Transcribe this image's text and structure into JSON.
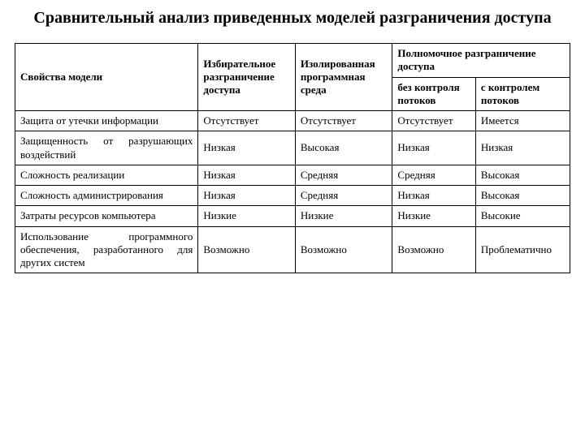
{
  "title": "Сравнительный анализ приведенных моделей разграничения доступа",
  "header": {
    "row_label": "Свойства модели",
    "col1": "Избирательное разграничение доступа",
    "col2": "Изолированная программная среда",
    "group": "Полномочное разграничение доступа",
    "sub1": "без контроля потоков",
    "sub2": "с контролем потоков"
  },
  "rows": [
    {
      "label": "Защита от утечки информации",
      "c1": "Отсутствует",
      "c2": "Отсутствует",
      "c3": "Отсутствует",
      "c4": "Имеется"
    },
    {
      "label": "Защищенность от разрушающих воздействий",
      "c1": "Низкая",
      "c2": "Высокая",
      "c3": "Низкая",
      "c4": "Низкая"
    },
    {
      "label": "Сложность реализации",
      "c1": "Низкая",
      "c2": "Средняя",
      "c3": "Средняя",
      "c4": "Высокая"
    },
    {
      "label": "Сложность администрирования",
      "c1": "Низкая",
      "c2": "Средняя",
      "c3": "Низкая",
      "c4": "Высокая"
    },
    {
      "label": "Затраты ресурсов компьютера",
      "c1": "Низкие",
      "c2": "Низкие",
      "c3": "Низкие",
      "c4": "Высокие"
    },
    {
      "label": "Использование программного обеспечения, разработанного для других систем",
      "c1": "Возможно",
      "c2": "Возможно",
      "c3": "Возможно",
      "c4": "Проблематично"
    }
  ],
  "style": {
    "text_color": "#000000",
    "background_color": "#ffffff",
    "border_color": "#000000",
    "title_fontsize": 20,
    "cell_fontsize": 13,
    "font_family": "Times New Roman",
    "column_widths_pct": [
      33,
      17.5,
      17.5,
      15,
      17
    ]
  }
}
